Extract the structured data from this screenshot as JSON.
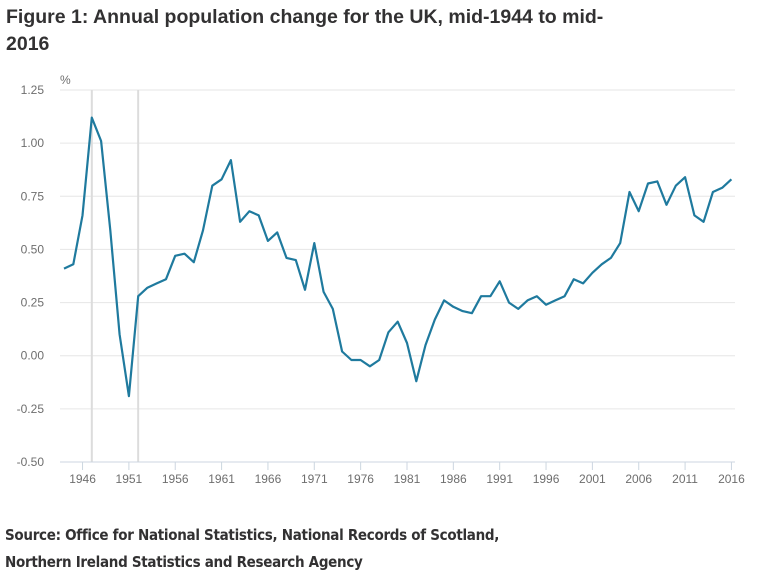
{
  "title": "Figure 1: Annual population change for the UK, mid-1944 to mid-2016",
  "source": [
    "Source: Office for National Statistics, National Records of Scotland,",
    "Northern Ireland Statistics and Research Agency"
  ],
  "colors": {
    "line": "#1f7a9e",
    "grid": "#e6e6e6",
    "marker_line": "#dcdcdc",
    "text": "#323132"
  },
  "chart_data": {
    "type": "line",
    "title": "Figure 1: Annual population change for the UK, mid-1944 to mid-2016",
    "ylabel": "%",
    "xlabel": "",
    "ylim": [
      -0.5,
      1.25
    ],
    "xlim": [
      1944,
      2016
    ],
    "grid": true,
    "y_ticks": [
      "1.25",
      "1.00",
      "0.75",
      "0.50",
      "0.25",
      "0.00",
      "-0.25",
      "-0.50"
    ],
    "x_ticks": [
      "1946",
      "1951",
      "1956",
      "1961",
      "1966",
      "1971",
      "1976",
      "1981",
      "1986",
      "1991",
      "1996",
      "2001",
      "2006",
      "2011",
      "2016"
    ],
    "vertical_reference_lines": [
      1947,
      1952
    ],
    "x": [
      1944,
      1945,
      1946,
      1947,
      1948,
      1949,
      1950,
      1951,
      1952,
      1953,
      1954,
      1955,
      1956,
      1957,
      1958,
      1959,
      1960,
      1961,
      1962,
      1963,
      1964,
      1965,
      1966,
      1967,
      1968,
      1969,
      1970,
      1971,
      1972,
      1973,
      1974,
      1975,
      1976,
      1977,
      1978,
      1979,
      1980,
      1981,
      1982,
      1983,
      1984,
      1985,
      1986,
      1987,
      1988,
      1989,
      1990,
      1991,
      1992,
      1993,
      1994,
      1995,
      1996,
      1997,
      1998,
      1999,
      2000,
      2001,
      2002,
      2003,
      2004,
      2005,
      2006,
      2007,
      2008,
      2009,
      2010,
      2011,
      2012,
      2013,
      2014,
      2015,
      2016
    ],
    "series": [
      {
        "values": [
          0.41,
          0.43,
          0.66,
          1.12,
          1.01,
          0.59,
          0.1,
          -0.19,
          0.28,
          0.32,
          0.34,
          0.36,
          0.47,
          0.48,
          0.44,
          0.59,
          0.8,
          0.83,
          0.92,
          0.63,
          0.68,
          0.66,
          0.54,
          0.58,
          0.46,
          0.45,
          0.31,
          0.53,
          0.3,
          0.22,
          0.02,
          -0.02,
          -0.02,
          -0.05,
          -0.02,
          0.11,
          0.16,
          0.06,
          -0.12,
          0.05,
          0.17,
          0.26,
          0.23,
          0.21,
          0.2,
          0.28,
          0.28,
          0.35,
          0.25,
          0.22,
          0.26,
          0.28,
          0.24,
          0.26,
          0.28,
          0.36,
          0.34,
          0.39,
          0.43,
          0.46,
          0.53,
          0.77,
          0.68,
          0.81,
          0.82,
          0.71,
          0.8,
          0.84,
          0.66,
          0.63,
          0.77,
          0.79,
          0.83
        ]
      }
    ]
  }
}
